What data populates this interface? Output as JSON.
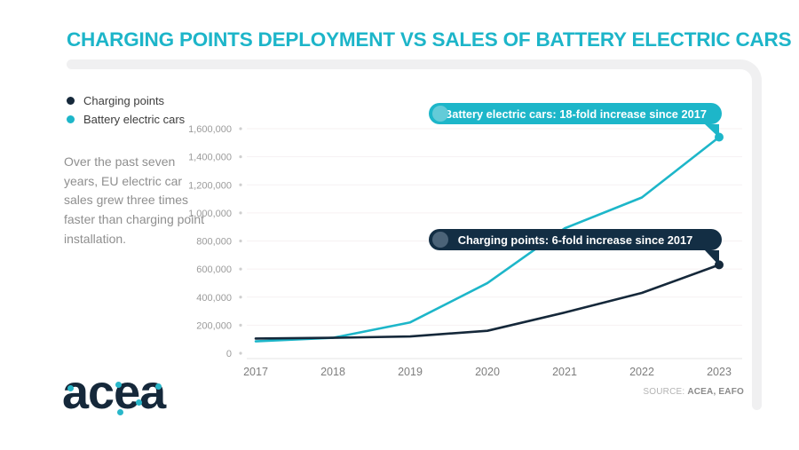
{
  "title": "CHARGING POINTS DEPLOYMENT VS SALES OF BATTERY ELECTRIC CARS",
  "legend": [
    {
      "label": "Charging points",
      "color": "#15283a"
    },
    {
      "label": "Battery electric cars",
      "color": "#1db6c9"
    }
  ],
  "description": "Over the past seven years, EU electric car sales grew three times faster than charging point installation.",
  "callouts": {
    "bev": {
      "text": "Battery electric cars: 18-fold increase since 2017",
      "color": "#1db6c9"
    },
    "charging": {
      "text": "Charging points: 6-fold increase since 2017",
      "color": "#132e44"
    }
  },
  "source": {
    "prefix": "SOURCE:",
    "value": "ACEA, EAFO"
  },
  "logo": {
    "text": "acea"
  },
  "colors": {
    "accent_teal": "#1db6c9",
    "dark_navy": "#15283a",
    "frame_gray": "#f0f0f1",
    "gridline": "#f6f1f2",
    "axis_label": "#9b9b9b"
  },
  "chart_data": {
    "type": "line",
    "x": [
      2017,
      2018,
      2019,
      2020,
      2021,
      2022,
      2023
    ],
    "series": [
      {
        "name": "Charging points",
        "color": "#15283a",
        "values": [
          105000,
          110000,
          120000,
          160000,
          290000,
          430000,
          630000
        ]
      },
      {
        "name": "Battery electric cars",
        "color": "#1db6c9",
        "values": [
          85000,
          110000,
          220000,
          500000,
          890000,
          1110000,
          1540000
        ]
      }
    ],
    "ylim": [
      0,
      1600000
    ],
    "ytick_step": 200000,
    "ytick_labels": [
      "0",
      "200,000",
      "400,000",
      "600,000",
      "800,000",
      "1,000,000",
      "1,200,000",
      "1,400,000",
      "1,600,000"
    ],
    "grid": true,
    "legend_position": "top-left",
    "annotations": [
      "Battery electric cars: 18-fold increase since 2017",
      "Charging points: 6-fold increase since 2017"
    ]
  }
}
